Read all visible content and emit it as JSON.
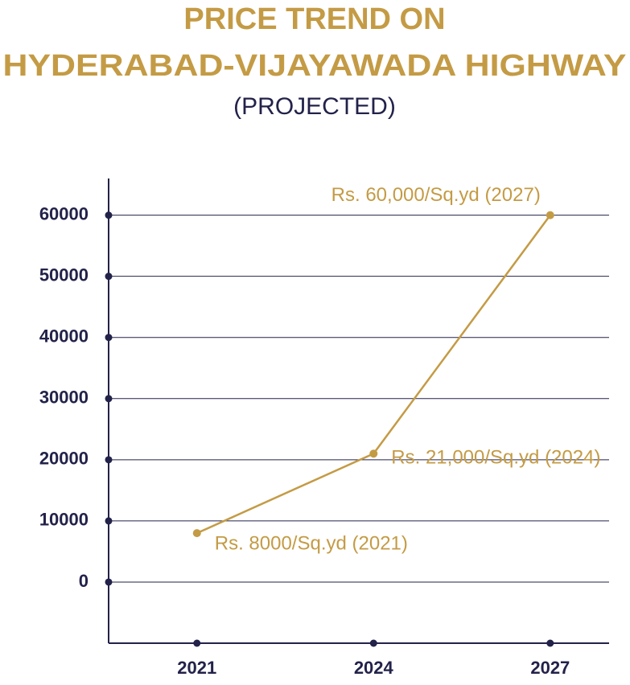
{
  "chart_data": {
    "type": "line",
    "title": [
      "PRICE TREND ON",
      "HYDERABAD-VIJAYAWADA HIGHWAY"
    ],
    "subtitle": "(PROJECTED)",
    "x": [
      2021,
      2024,
      2027
    ],
    "series": [
      {
        "color": "#c49b45",
        "values": [
          8000,
          21000,
          60000
        ],
        "value_labels": [
          "Rs. 8000/Sq.yd (2021)",
          "Rs. 21,000/Sq.yd (2024)",
          "Rs. 60,000/Sq.yd (2027)"
        ]
      }
    ],
    "xlim": [
      2019.5,
      2028
    ],
    "xticks": [
      2021,
      2024,
      2027
    ],
    "ylim": [
      -10000,
      66000
    ],
    "yticks": [
      0,
      10000,
      20000,
      30000,
      40000,
      50000,
      60000
    ],
    "grid": true
  }
}
